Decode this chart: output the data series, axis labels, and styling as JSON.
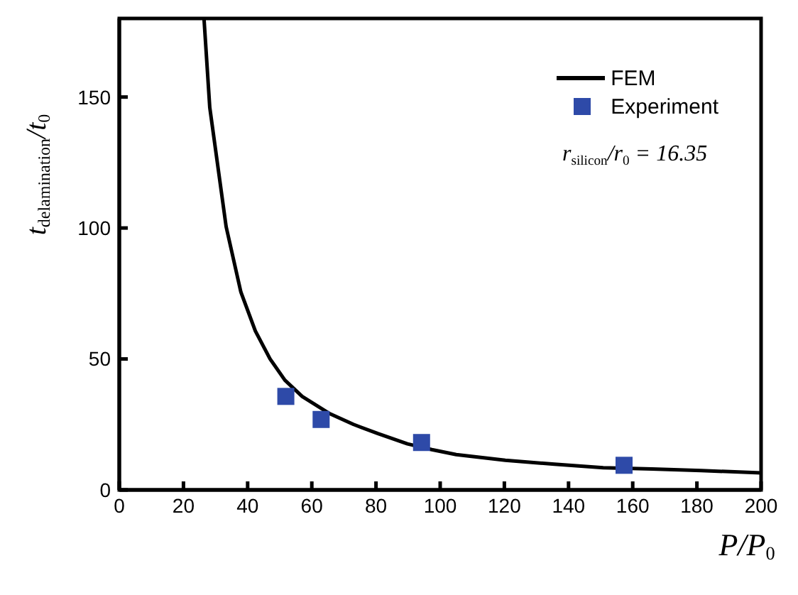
{
  "chart_data": {
    "type": "line",
    "xlabel": "P/P$_{0}$",
    "ylabel": "t$_{delamination}$/t$_{0}$",
    "xlim": [
      0,
      200
    ],
    "xticks": [
      0,
      20,
      40,
      60,
      80,
      100,
      120,
      140,
      160,
      180,
      200
    ],
    "ylim": [
      0,
      180
    ],
    "yticks": [
      0,
      50,
      100,
      150
    ],
    "legend": "top right",
    "annotations": [
      "r$_{silicon}$/r$_{0}$ = 16.35"
    ],
    "series": [
      {
        "name": "FEM",
        "color": "#000000",
        "marker": "none",
        "line_style": "solid",
        "x": [
          26.4,
          28.2,
          33.3,
          37.9,
          42.4,
          47,
          51.6,
          57,
          65.3,
          73,
          80.6,
          89.8,
          97.4,
          105,
          120.3,
          135.6,
          150.8,
          166,
          181.4,
          200
        ],
        "values": [
          180,
          146,
          100.5,
          75.5,
          60.7,
          50,
          41.9,
          35.7,
          29.3,
          25,
          21.5,
          17.6,
          15.4,
          13.5,
          11.3,
          9.8,
          8.5,
          8,
          7.4,
          6.5
        ]
      },
      {
        "name": "Experiment",
        "type": "scatter",
        "color": "#2e4aa8",
        "marker": "square",
        "x": [
          51.9,
          62.9,
          94.2,
          157.3
        ],
        "values": [
          35.7,
          26.9,
          18.1,
          9.4
        ]
      }
    ]
  }
}
